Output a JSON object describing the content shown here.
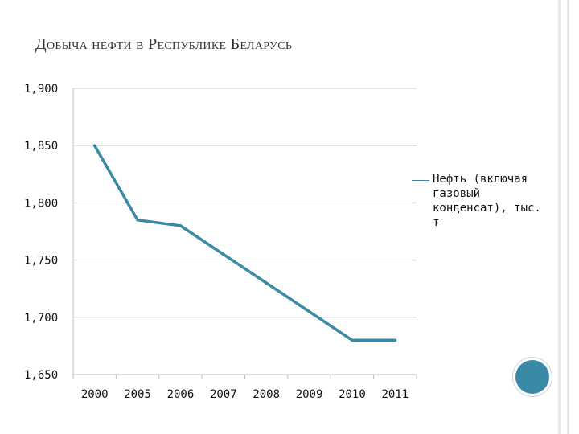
{
  "slide": {
    "title": "Добыча нефти в Республике Беларусь"
  },
  "colors": {
    "series_line": "#3a8aa5",
    "grid": "#d0d0d0",
    "axis": "#bdbdbd",
    "accent_circle": "#3a8aa5"
  },
  "chart_data": {
    "type": "line",
    "title": "",
    "xlabel": "",
    "ylabel": "",
    "categories": [
      "2000",
      "2005",
      "2006",
      "2007",
      "2008",
      "2009",
      "2010",
      "2011"
    ],
    "ylim": [
      1650,
      1900
    ],
    "y_ticks": [
      1650,
      1700,
      1750,
      1800,
      1850,
      1900
    ],
    "y_tick_labels": [
      "1,650",
      "1,700",
      "1,750",
      "1,800",
      "1,850",
      "1,900"
    ],
    "grid": "horizontal",
    "legend_position": "right",
    "series": [
      {
        "name": "Нефть (включая газовый конденсат), тыс. т",
        "values": [
          1850,
          1785,
          1780,
          1755,
          1730,
          1705,
          1680,
          1680
        ]
      }
    ]
  }
}
